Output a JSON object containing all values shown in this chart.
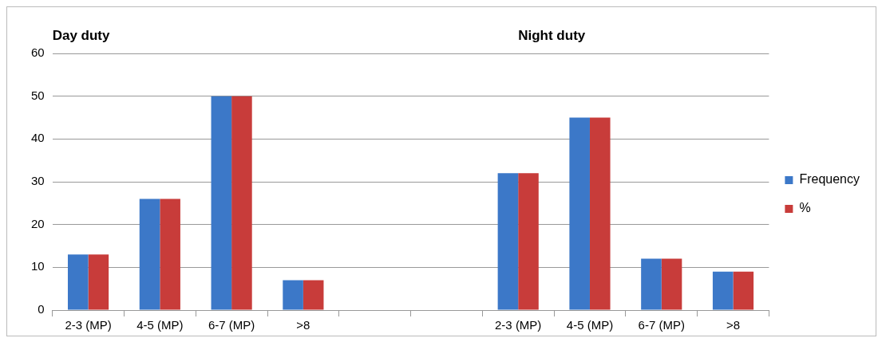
{
  "chart_data": {
    "type": "bar",
    "categories": [
      "2-3 (MP)",
      "4-5 (MP)",
      "6-7 (MP)",
      ">8",
      null,
      null,
      "2-3 (MP)",
      "4-5 (MP)",
      "6-7 (MP)",
      ">8"
    ],
    "series": [
      {
        "name": "Frequency",
        "color": "#3c78c8",
        "values": [
          13,
          26,
          50,
          7,
          null,
          null,
          32,
          45,
          12,
          9
        ]
      },
      {
        "name": "%",
        "color": "#c83c3a",
        "values": [
          13,
          26,
          50,
          7,
          null,
          null,
          32,
          45,
          12,
          9
        ]
      }
    ],
    "annotations": [
      "Day duty",
      "Night duty"
    ],
    "ylim": [
      0,
      60
    ],
    "yticks": [
      0,
      10,
      20,
      30,
      40,
      50,
      60
    ],
    "grid": "y",
    "legend": "right"
  }
}
